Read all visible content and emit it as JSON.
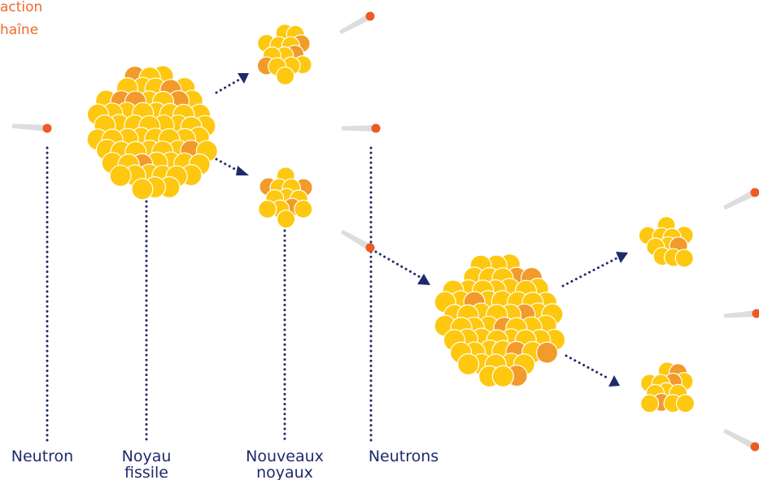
{
  "title": {
    "line1": "action",
    "line2": "haîne"
  },
  "labels": {
    "neutron": "Neutron",
    "fissile": [
      "Noyau",
      "fissile"
    ],
    "nouveaux": [
      "Nouveaux",
      "noyaux"
    ],
    "neutrons": "Neutrons"
  }
}
